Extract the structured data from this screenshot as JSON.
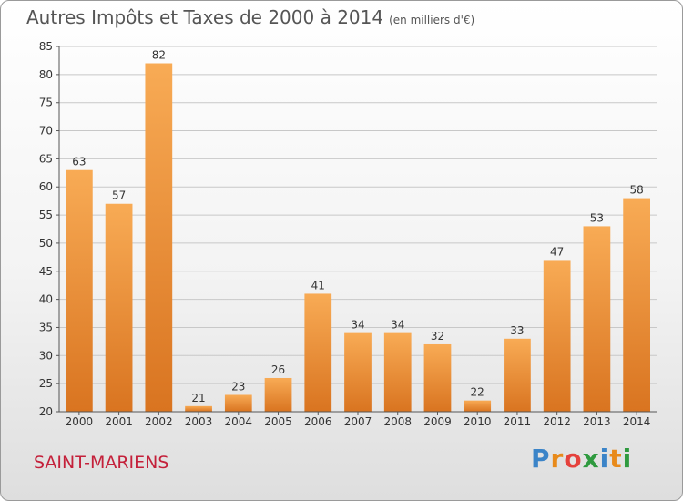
{
  "title": "Autres Impôts et Taxes de 2000 à 2014",
  "unit": "(en milliers d'€)",
  "commune": "SAINT-MARIENS",
  "brand": {
    "letters": [
      "P",
      "r",
      "o",
      "x",
      "i",
      "t",
      "i"
    ],
    "colors": [
      "#3b84c8",
      "#e88a1a",
      "#e5413c",
      "#2f9a3f",
      "#3b84c8",
      "#e88a1a",
      "#2f9a3f"
    ]
  },
  "colors": {
    "bar_light": "#f8ab55",
    "bar_dark": "#d97420",
    "grid": "#c8c8c8",
    "axis": "#555555"
  },
  "chart_data": {
    "type": "bar",
    "categories": [
      "2000",
      "2001",
      "2002",
      "2003",
      "2004",
      "2005",
      "2006",
      "2007",
      "2008",
      "2009",
      "2010",
      "2011",
      "2012",
      "2013",
      "2014"
    ],
    "values": [
      63,
      57,
      82,
      21,
      23,
      26,
      41,
      34,
      34,
      32,
      22,
      33,
      47,
      53,
      58
    ],
    "ylim": [
      20,
      85
    ],
    "yticks": [
      20,
      25,
      30,
      35,
      40,
      45,
      50,
      55,
      60,
      65,
      70,
      75,
      80,
      85
    ],
    "grid": true,
    "data_labels": true,
    "legend": "none"
  }
}
